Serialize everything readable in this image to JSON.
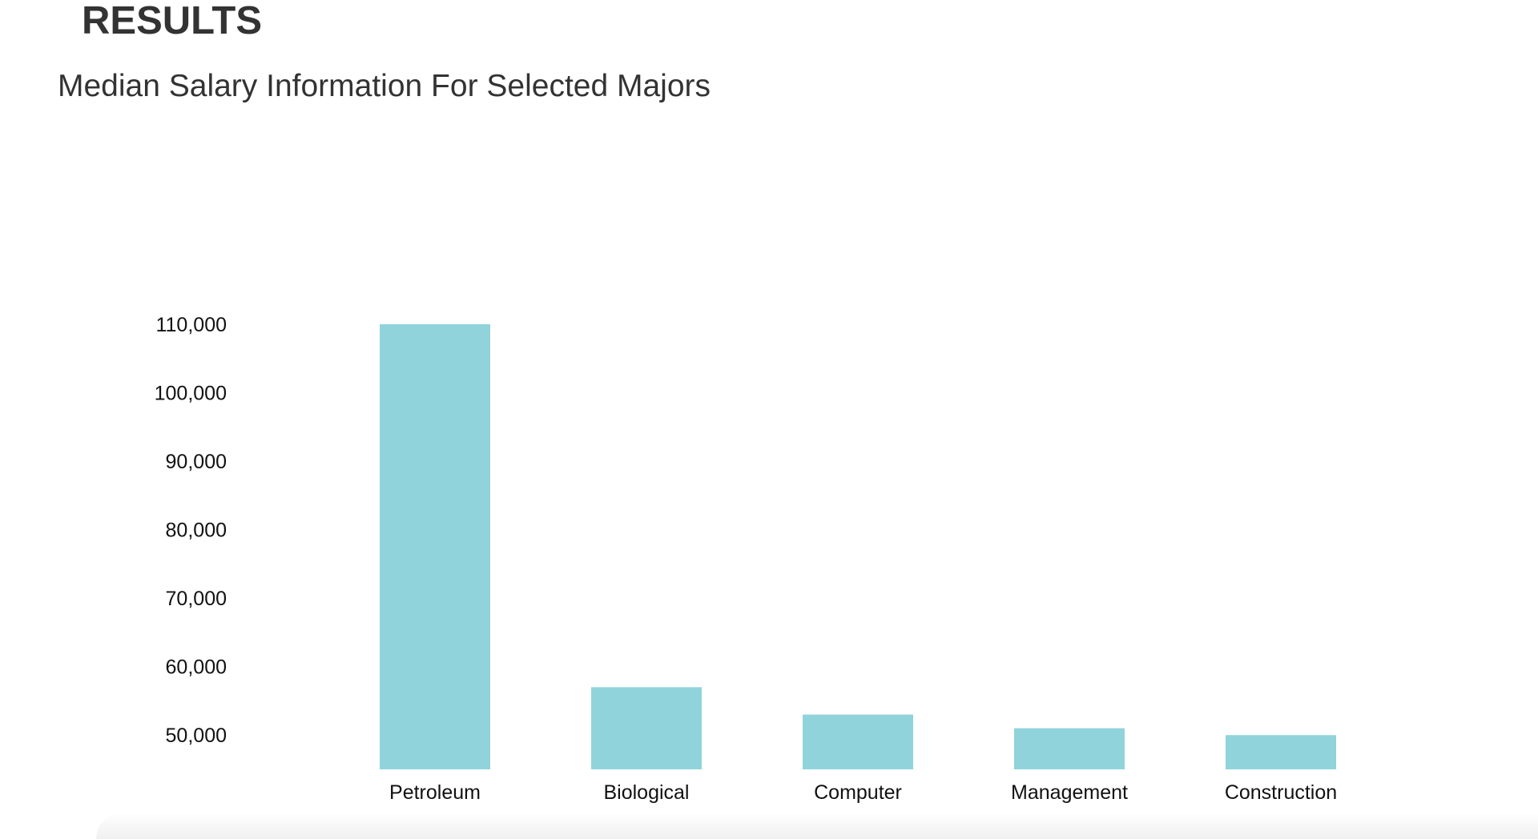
{
  "header": {
    "heading": "RESULTS"
  },
  "chart_data": {
    "type": "bar",
    "title": "Median Salary Information For Selected Majors",
    "xlabel": "",
    "ylabel": "",
    "categories": [
      "Petroleum",
      "Biological",
      "Computer",
      "Management",
      "Construction"
    ],
    "values": [
      110000,
      57000,
      53000,
      51000,
      50000
    ],
    "yticks": [
      110000,
      100000,
      90000,
      80000,
      70000,
      60000,
      50000
    ],
    "ytick_labels": [
      "110,000",
      "100,000",
      "90,000",
      "80,000",
      "70,000",
      "60,000",
      "50,000"
    ],
    "ylim": [
      45000,
      110000
    ],
    "grid": false,
    "legend": "none",
    "bar_color": "#90D3DB",
    "text_color": "#333333",
    "tick_color": "#111111"
  }
}
